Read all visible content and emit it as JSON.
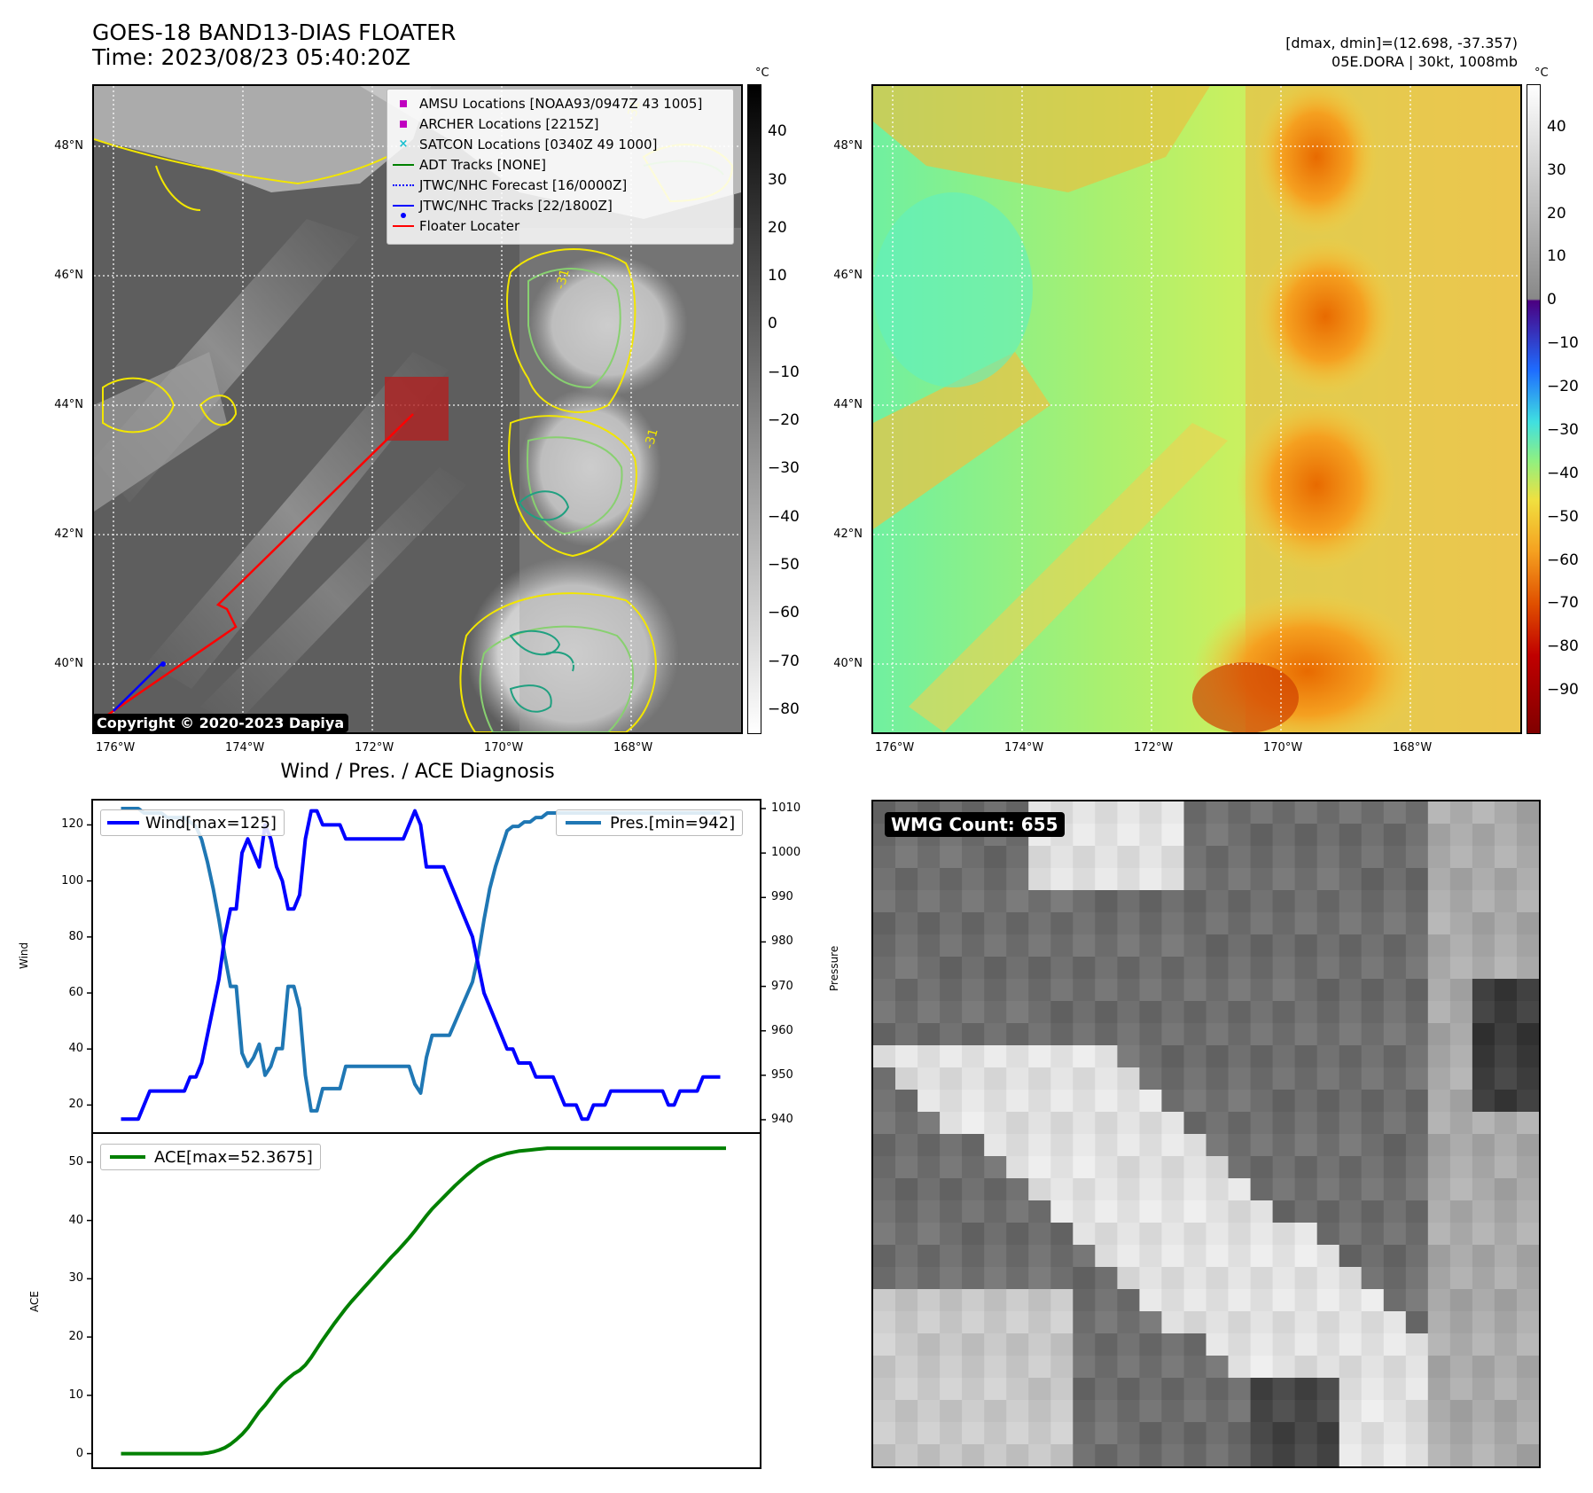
{
  "header": {
    "title_line1": "GOES-18 BAND13-DIAS FLOATER",
    "title_line2": "Time: 2023/08/23 05:40:20Z",
    "stats_line1": "[dmax, dmin]=(12.698, -37.357)",
    "stats_line2": "05E.DORA | 30kt, 1008mb"
  },
  "ir_map": {
    "lat_labels": [
      "48°N",
      "46°N",
      "44°N",
      "42°N",
      "40°N"
    ],
    "lon_labels": [
      "176°W",
      "174°W",
      "172°W",
      "170°W",
      "168°W"
    ],
    "contour_label": "-31",
    "copyright": "Copyright © 2020-2023 Dapiya",
    "legend": [
      {
        "label": "AMSU Locations [NOAA93/0947Z 43 1005]",
        "marker": "square",
        "color": "#c000c0"
      },
      {
        "label": "ARCHER Locations [2215Z]",
        "marker": "square",
        "color": "#c000c0"
      },
      {
        "label": "SATCON Locations [0340Z 49 1000]",
        "marker": "x",
        "color": "#17becf"
      },
      {
        "label": "ADT Tracks [NONE]",
        "marker": "line",
        "color": "#008000"
      },
      {
        "label": "JTWC/NHC Forecast [16/0000Z]",
        "marker": "dotted",
        "color": "#0000ff"
      },
      {
        "label": "JTWC/NHC Tracks [22/1800Z]",
        "marker": "line-dot",
        "color": "#0000ff"
      },
      {
        "label": "Floater Locater",
        "marker": "line",
        "color": "#ff0000"
      }
    ],
    "colorbar_unit": "°C",
    "colorbar_ticks": [
      "40",
      "30",
      "20",
      "10",
      "0",
      "−10",
      "−20",
      "−30",
      "−40",
      "−50",
      "−60",
      "−70",
      "−80"
    ],
    "colorbar_range": [
      -85,
      50
    ]
  },
  "color_map": {
    "lat_labels": [
      "48°N",
      "46°N",
      "44°N",
      "42°N",
      "40°N"
    ],
    "lon_labels": [
      "176°W",
      "174°W",
      "172°W",
      "170°W",
      "168°W"
    ],
    "colorbar_unit": "°C",
    "colorbar_ticks": [
      "40",
      "30",
      "20",
      "10",
      "0",
      "−10",
      "−20",
      "−30",
      "−40",
      "−50",
      "−60",
      "−70",
      "−80",
      "−90"
    ],
    "colorbar_range": [
      -100,
      50
    ]
  },
  "wmg": {
    "count_label": "WMG Count: 655"
  },
  "chart_data": [
    {
      "type": "line",
      "title": "Wind / Pres. / ACE Diagnosis",
      "ylabel": "Wind",
      "y2label": "Pressure",
      "ylim": [
        10,
        129
      ],
      "y2lim": [
        937,
        1012
      ],
      "yticks": [
        20,
        40,
        60,
        80,
        100,
        120
      ],
      "y2ticks": [
        940,
        950,
        960,
        970,
        980,
        990,
        1000,
        1010
      ],
      "xlim": [
        -5,
        111
      ],
      "series": [
        {
          "name": "Wind[max=125]",
          "axis": "left",
          "color": "#0000ff",
          "values": [
            15,
            15,
            15,
            15,
            20,
            25,
            25,
            25,
            25,
            25,
            25,
            25,
            30,
            30,
            35,
            45,
            55,
            65,
            80,
            90,
            90,
            110,
            115,
            110,
            105,
            120,
            115,
            105,
            100,
            90,
            90,
            95,
            115,
            125,
            125,
            120,
            120,
            120,
            120,
            115,
            115,
            115,
            115,
            115,
            115,
            115,
            115,
            115,
            115,
            115,
            120,
            125,
            120,
            105,
            105,
            105,
            105,
            100,
            95,
            90,
            85,
            80,
            70,
            60,
            55,
            50,
            45,
            40,
            40,
            35,
            35,
            35,
            30,
            30,
            30,
            30,
            25,
            20,
            20,
            20,
            15,
            15,
            20,
            20,
            20,
            25,
            25,
            25,
            25,
            25,
            25,
            25,
            25,
            25,
            25,
            20,
            20,
            25,
            25,
            25,
            25,
            30,
            30,
            30,
            30
          ]
        },
        {
          "name": "Pres.[min=942]",
          "axis": "right",
          "color": "#1f77b4",
          "values": [
            1010,
            1010,
            1010,
            1010,
            1009,
            1009,
            1009,
            1009,
            1008,
            1008,
            1008,
            1008,
            1007,
            1006,
            1003,
            998,
            992,
            985,
            977,
            970,
            970,
            955,
            952,
            954,
            957,
            950,
            952,
            956,
            956,
            970,
            970,
            965,
            950,
            942,
            942,
            947,
            947,
            947,
            947,
            952,
            952,
            952,
            952,
            952,
            952,
            952,
            952,
            952,
            952,
            952,
            952,
            948,
            946,
            954,
            959,
            959,
            959,
            959,
            962,
            965,
            968,
            971,
            977,
            985,
            992,
            997,
            1001,
            1005,
            1006,
            1006,
            1007,
            1007,
            1008,
            1008,
            1009,
            1009,
            1009,
            1009,
            1009,
            1009,
            1009,
            1009,
            1009,
            1009,
            1009,
            1009,
            1009,
            1009,
            1009,
            1009,
            1009,
            1009,
            1009,
            1009,
            1009,
            1009,
            1009,
            1009,
            1009,
            1009,
            1009,
            1009,
            1009,
            1009,
            1009
          ]
        }
      ]
    },
    {
      "type": "line",
      "title": "",
      "ylabel": "ACE",
      "ylim": [
        -2.5,
        55
      ],
      "yticks": [
        0,
        10,
        20,
        30,
        40,
        50
      ],
      "xlim": [
        -5,
        111
      ],
      "series": [
        {
          "name": "ACE[max=52.3675]",
          "color": "#008000",
          "values": [
            0,
            0,
            0,
            0,
            0,
            0,
            0,
            0,
            0,
            0,
            0,
            0,
            0,
            0,
            0,
            0.1,
            0.3,
            0.6,
            1.0,
            1.6,
            2.4,
            3.3,
            4.4,
            5.8,
            7.2,
            8.3,
            9.6,
            10.9,
            12.0,
            12.9,
            13.7,
            14.3,
            15.2,
            16.5,
            18.0,
            19.5,
            20.9,
            22.3,
            23.6,
            24.9,
            26.1,
            27.2,
            28.3,
            29.4,
            30.5,
            31.6,
            32.7,
            33.8,
            34.8,
            35.9,
            37.0,
            38.2,
            39.5,
            40.8,
            42.0,
            43.0,
            44.0,
            45.0,
            46.0,
            46.9,
            47.8,
            48.6,
            49.4,
            50.0,
            50.5,
            50.9,
            51.2,
            51.5,
            51.7,
            51.9,
            52.0,
            52.1,
            52.2,
            52.3,
            52.4,
            52.4,
            52.4,
            52.4,
            52.4,
            52.4,
            52.4,
            52.4,
            52.4,
            52.4,
            52.4,
            52.4,
            52.4,
            52.4,
            52.4,
            52.4,
            52.4,
            52.4,
            52.4,
            52.4,
            52.4,
            52.4,
            52.4,
            52.4,
            52.4,
            52.4,
            52.4,
            52.4,
            52.4,
            52.4,
            52.4,
            52.4
          ]
        }
      ]
    }
  ]
}
